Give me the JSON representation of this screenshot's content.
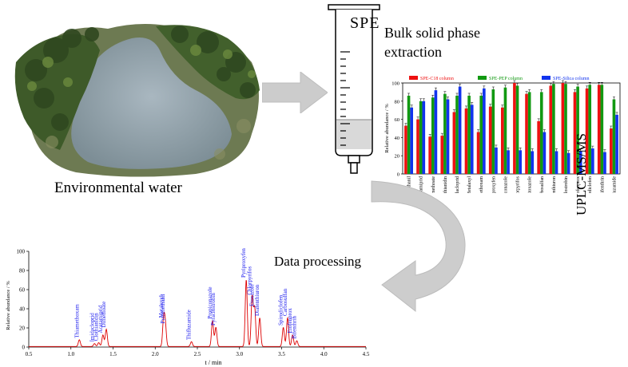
{
  "water_label": "Environmental water",
  "spe_text": "SPE",
  "bulk_line1": "Bulk solid phase",
  "bulk_line2": "extraction",
  "uplc_label": "UPLC-MS/MS",
  "data_processing_label": "Data processing",
  "colors": {
    "c18": "#ee1111",
    "pep": "#119911",
    "silica": "#1133ee",
    "chromatogram": "#dd0000",
    "peak_label": "#1a1aee",
    "arrow_gray": "#c8c8c8",
    "water": "#9aa6b0",
    "vegetation": "#3f5a2a"
  },
  "chart_data": [
    {
      "type": "bar",
      "legend": [
        "SPE-C18 column",
        "SPE-PEP column",
        "SPE-Silica column"
      ],
      "legend_position": "top",
      "ylabel": "Relative abundance / %",
      "ylim": [
        0,
        100
      ],
      "yticks": [
        "0",
        "20",
        "40",
        "60",
        "80",
        "100"
      ],
      "categories": [
        "Pymmethanil",
        "Acetamiprid",
        "Dimethoate",
        "Clothianidin",
        "Imidacloprid",
        "Metalaxyl",
        "Thiamethoxam",
        "Pyriproxyfen",
        "Propiconazole",
        "Chlorpyrifos",
        "Etoxazole",
        "Carbosulfan",
        "Diafenthiuron",
        "Pyraclostrobin",
        "Etofenprox",
        "Spirodiclofen",
        "Bifenthrin",
        "Thifluzamide"
      ],
      "series": [
        {
          "name": "SPE-C18 column",
          "values": [
            53,
            60,
            41,
            42,
            68,
            72,
            46,
            74,
            73,
            100,
            88,
            58,
            97,
            100,
            90,
            94,
            98,
            50
          ]
        },
        {
          "name": "SPE-PEP column",
          "values": [
            86,
            80,
            84,
            88,
            86,
            86,
            86,
            93,
            95,
            97,
            90,
            90,
            99,
            99,
            96,
            98,
            98,
            82
          ]
        },
        {
          "name": "SPE-Silica column",
          "values": [
            73,
            80,
            92,
            82,
            96,
            76,
            94,
            29,
            26,
            26,
            25,
            46,
            25,
            23,
            25,
            28,
            24,
            65
          ]
        }
      ]
    },
    {
      "type": "line",
      "xlabel": "t / min",
      "ylabel": "Relative abundance / %",
      "xlim": [
        0.5,
        4.5
      ],
      "ylim": [
        0,
        100
      ],
      "xticks": [
        "0.5",
        "1.0",
        "1.5",
        "2.0",
        "2.5",
        "3.0",
        "3.5",
        "4.0",
        "4.5"
      ],
      "yticks": [
        "0",
        "20",
        "40",
        "60",
        "80",
        "100"
      ],
      "peaks": [
        {
          "label": "Thiamethoxam",
          "t": 1.1,
          "height": 7
        },
        {
          "label": "Imidacloprid",
          "t": 1.28,
          "height": 3
        },
        {
          "label": "Clothianidin",
          "t": 1.33,
          "height": 4
        },
        {
          "label": "Acetamiprid",
          "t": 1.38,
          "height": 12
        },
        {
          "label": "Dimethoate",
          "t": 1.42,
          "height": 18
        },
        {
          "label": "Metalaxyl",
          "t": 2.1,
          "height": 28
        },
        {
          "label": "Pymmethanil",
          "t": 2.12,
          "height": 22
        },
        {
          "label": "Thifluzamide",
          "t": 2.43,
          "height": 5
        },
        {
          "label": "Propiconazole",
          "t": 2.68,
          "height": 27
        },
        {
          "label": "Pyraclostrobin",
          "t": 2.72,
          "height": 20
        },
        {
          "label": "Pyriproxyfen",
          "t": 3.08,
          "height": 70
        },
        {
          "label": "Chlorpyrifos",
          "t": 3.15,
          "height": 52
        },
        {
          "label": "Etoxazole",
          "t": 3.18,
          "height": 40
        },
        {
          "label": "Diafenthiuron",
          "t": 3.24,
          "height": 30
        },
        {
          "label": "Spirodiclofen",
          "t": 3.52,
          "height": 20
        },
        {
          "label": "Carbosulfan",
          "t": 3.57,
          "height": 30
        },
        {
          "label": "Etofenprox",
          "t": 3.63,
          "height": 12
        },
        {
          "label": "Bifenthrin",
          "t": 3.68,
          "height": 6
        }
      ]
    }
  ]
}
